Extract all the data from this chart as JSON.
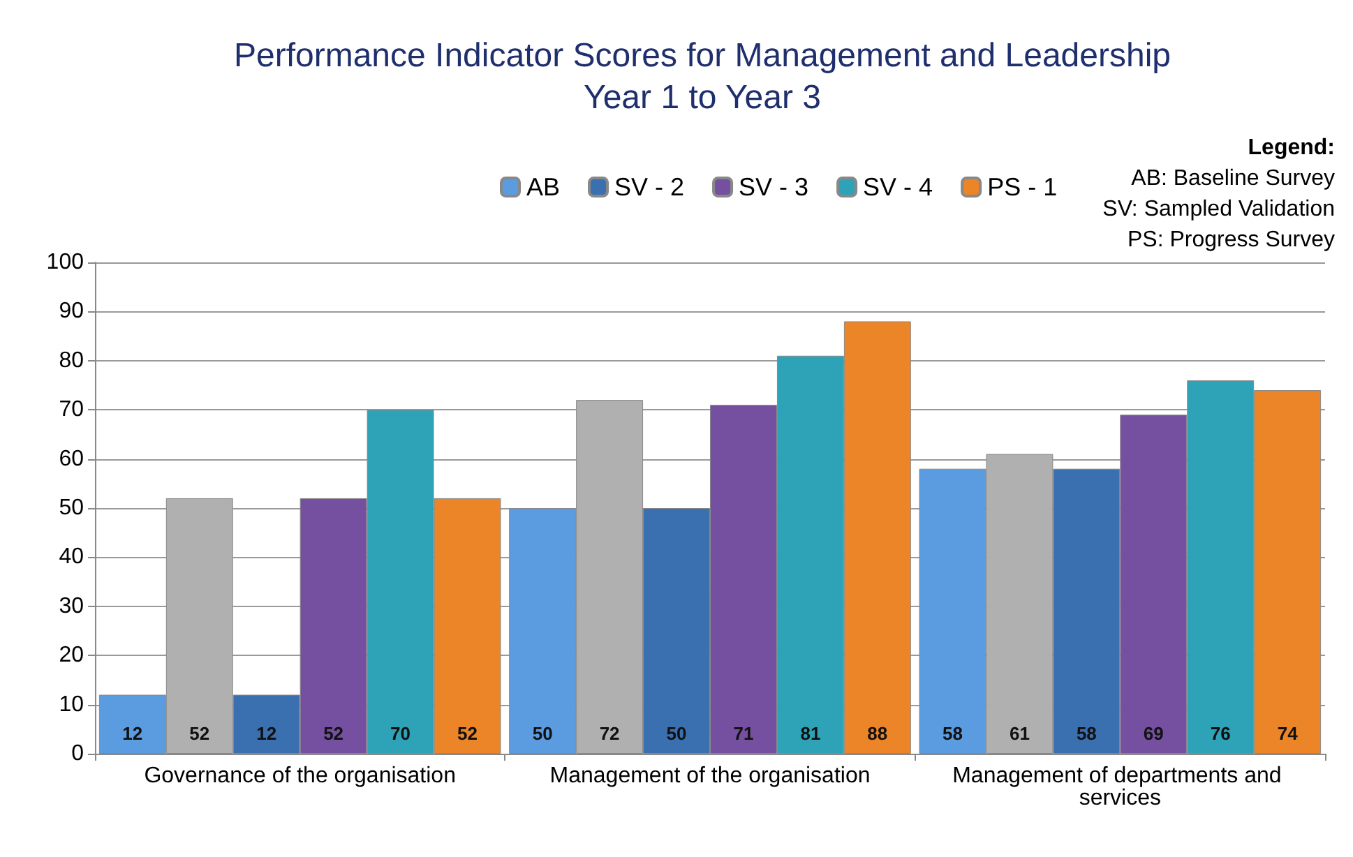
{
  "chart_data": {
    "type": "bar",
    "title": "Performance Indicator Scores for Management and Leadership\nYear 1 to Year 3",
    "categories": [
      "Governance of the organisation",
      "Management of the organisation",
      "Management of departments and services"
    ],
    "series": [
      {
        "name": "AB",
        "color": "#5b9be0",
        "values": [
          12,
          50,
          58
        ]
      },
      {
        "color": "#b0b0b0",
        "values": [
          52,
          72,
          61
        ]
      },
      {
        "name": "SV - 2",
        "color": "#3a6fb0",
        "values": [
          12,
          50,
          58
        ]
      },
      {
        "name": "SV - 3",
        "color": "#7550a0",
        "values": [
          52,
          71,
          69
        ]
      },
      {
        "name": "SV - 4",
        "color": "#2ea3b8",
        "values": [
          70,
          81,
          76
        ]
      },
      {
        "name": "PS - 1",
        "color": "#ec8428",
        "values": [
          52,
          88,
          74
        ]
      }
    ],
    "ylim": [
      0,
      100
    ],
    "yticks": [
      0,
      10,
      20,
      30,
      40,
      50,
      60,
      70,
      80,
      90,
      100
    ],
    "grid": "y",
    "legend": "top",
    "data_labels": true,
    "annotations": [
      "Legend:",
      "AB: Baseline Survey",
      "SV: Sampled Validation",
      "PS: Progress Survey"
    ]
  }
}
